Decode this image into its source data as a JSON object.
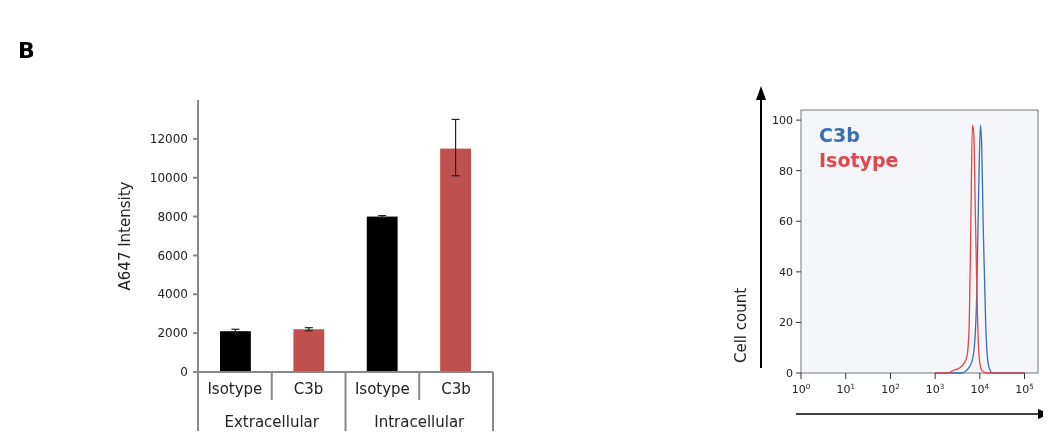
{
  "chart_data": [
    {
      "type": "bar",
      "ylabel": "A647 Intensity",
      "categories": [
        "Isotype",
        "C3b",
        "Isotype",
        "C3b"
      ],
      "values": [
        2100,
        2200,
        8000,
        11500
      ],
      "colors": [
        "#000000",
        "#c0504d",
        "#000000",
        "#c0504d"
      ],
      "errors": [
        100,
        80,
        50,
        [
          10100,
          13000
        ]
      ],
      "ylim": [
        0,
        14000
      ],
      "yticks": [
        0,
        2000,
        4000,
        6000,
        8000,
        10000,
        12000
      ],
      "annotations": [
        "B",
        "Extracellular",
        "Intracellular"
      ]
    },
    {
      "type": "line",
      "ylabel": "Cell count",
      "log": "x",
      "xlim": [
        1,
        200000
      ],
      "xticks": [
        {
          "value": 1,
          "label": "10$^{0}$"
        },
        {
          "value": 10,
          "label": "10$^{1}$"
        },
        {
          "value": 100,
          "label": "10$^{2}$"
        },
        {
          "value": 1000,
          "label": "10$^{3}$"
        },
        {
          "value": 10000,
          "label": "10$^{4}$"
        },
        {
          "value": 100000,
          "label": "10$^{5}$"
        }
      ],
      "ylim": [
        0,
        104
      ],
      "yticks": [
        0,
        20,
        40,
        60,
        80,
        100
      ],
      "legend": "top left",
      "series": [
        {
          "name": "C3b",
          "color": "#3a6fb5",
          "x": [
            1000,
            4000,
            5000,
            6500,
            7500,
            8500,
            9500,
            10300,
            11000,
            12000,
            13500,
            15000,
            17000,
            19000,
            100000
          ],
          "values": [
            0,
            0,
            1,
            4,
            10,
            30,
            75,
            98,
            90,
            55,
            20,
            5,
            1,
            0,
            0
          ]
        },
        {
          "name": "Isotype",
          "color": "#e0474c",
          "x": [
            1000,
            2000,
            2500,
            3500,
            4500,
            5200,
            5800,
            6300,
            6800,
            7300,
            8000,
            8800,
            9500,
            10500,
            12000,
            14000,
            100000
          ],
          "values": [
            0,
            0,
            1,
            2,
            4,
            7,
            20,
            60,
            98,
            95,
            60,
            25,
            8,
            2,
            0.5,
            0,
            0
          ]
        }
      ]
    }
  ]
}
